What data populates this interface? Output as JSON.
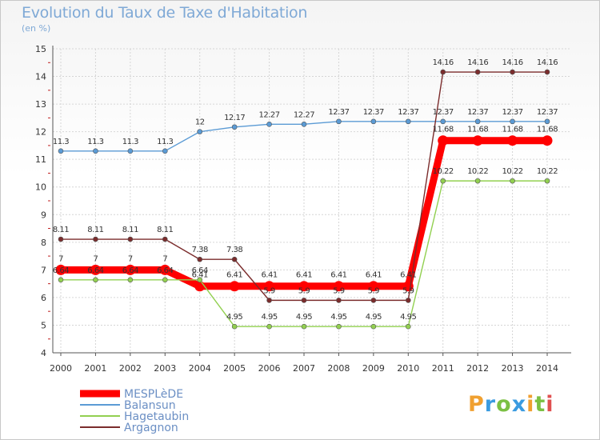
{
  "title": "Evolution du Taux de Taxe d'Habitation",
  "subtitle": "(en %)",
  "logo": {
    "text": "Proxiti",
    "letters": [
      "P",
      "r",
      "o",
      "x",
      "i",
      "t",
      "i"
    ],
    "colors": [
      "#f0a030",
      "#3a9be0",
      "#7bc043",
      "#3a9be0",
      "#f0a030",
      "#7bc043",
      "#e05050"
    ]
  },
  "chart_data": {
    "type": "line",
    "title": "Evolution du Taux de Taxe d'Habitation",
    "subtitle": "(en %)",
    "xlabel": "",
    "ylabel": "",
    "ylim": [
      4,
      15
    ],
    "yticks": [
      "4",
      "5",
      "6",
      "7",
      "8",
      "9",
      "10",
      "11",
      "12",
      "13",
      "14",
      "15"
    ],
    "x": [
      "2000",
      "2001",
      "2002",
      "2003",
      "2004",
      "2005",
      "2006",
      "2007",
      "2008",
      "2009",
      "2010",
      "2011",
      "2012",
      "2013",
      "2014"
    ],
    "grid": true,
    "legend_position": "bottom-left",
    "series": [
      {
        "name": "MESPLèDE",
        "color": "#ff0000",
        "values": [
          7,
          7,
          7,
          7,
          6.41,
          6.41,
          6.41,
          6.41,
          6.41,
          6.41,
          6.41,
          11.68,
          11.68,
          11.68,
          11.68
        ],
        "labels": [
          "7",
          "7",
          "7",
          "7",
          "6.41",
          "6.41",
          "6.41",
          "6.41",
          "6.41",
          "6.41",
          "6.41",
          "11.68",
          "11.68",
          "11.68",
          "11.68"
        ]
      },
      {
        "name": "Balansun",
        "color": "#5b9bd5",
        "values": [
          11.3,
          11.3,
          11.3,
          11.3,
          12,
          12.17,
          12.27,
          12.27,
          12.37,
          12.37,
          12.37,
          12.37,
          12.37,
          12.37,
          12.37
        ],
        "labels": [
          "11.3",
          "11.3",
          "11.3",
          "11.3",
          "12",
          "12.17",
          "12.27",
          "12.27",
          "12.37",
          "12.37",
          "12.37",
          "12.37",
          "12.37",
          "12.37",
          "12.37"
        ]
      },
      {
        "name": "Hagetaubin",
        "color": "#92d050",
        "values": [
          6.64,
          6.64,
          6.64,
          6.64,
          6.64,
          4.95,
          4.95,
          4.95,
          4.95,
          4.95,
          4.95,
          10.22,
          10.22,
          10.22,
          10.22
        ],
        "labels": [
          "6.64",
          "6.64",
          "6.64",
          "6.64",
          "6.64",
          "4.95",
          "4.95",
          "4.95",
          "4.95",
          "4.95",
          "4.95",
          "10.22",
          "10.22",
          "10.22",
          "10.22"
        ]
      },
      {
        "name": "Argagnon",
        "color": "#7b2c2c",
        "values": [
          8.11,
          8.11,
          8.11,
          8.11,
          7.38,
          7.38,
          5.9,
          5.9,
          5.9,
          5.9,
          5.9,
          14.16,
          14.16,
          14.16,
          14.16
        ],
        "labels": [
          "8.11",
          "8.11",
          "8.11",
          "8.11",
          "7.38",
          "7.38",
          "5.9",
          "5.9",
          "5.9",
          "5.9",
          "5.9",
          "14.16",
          "14.16",
          "14.16",
          "14.16"
        ]
      }
    ]
  }
}
